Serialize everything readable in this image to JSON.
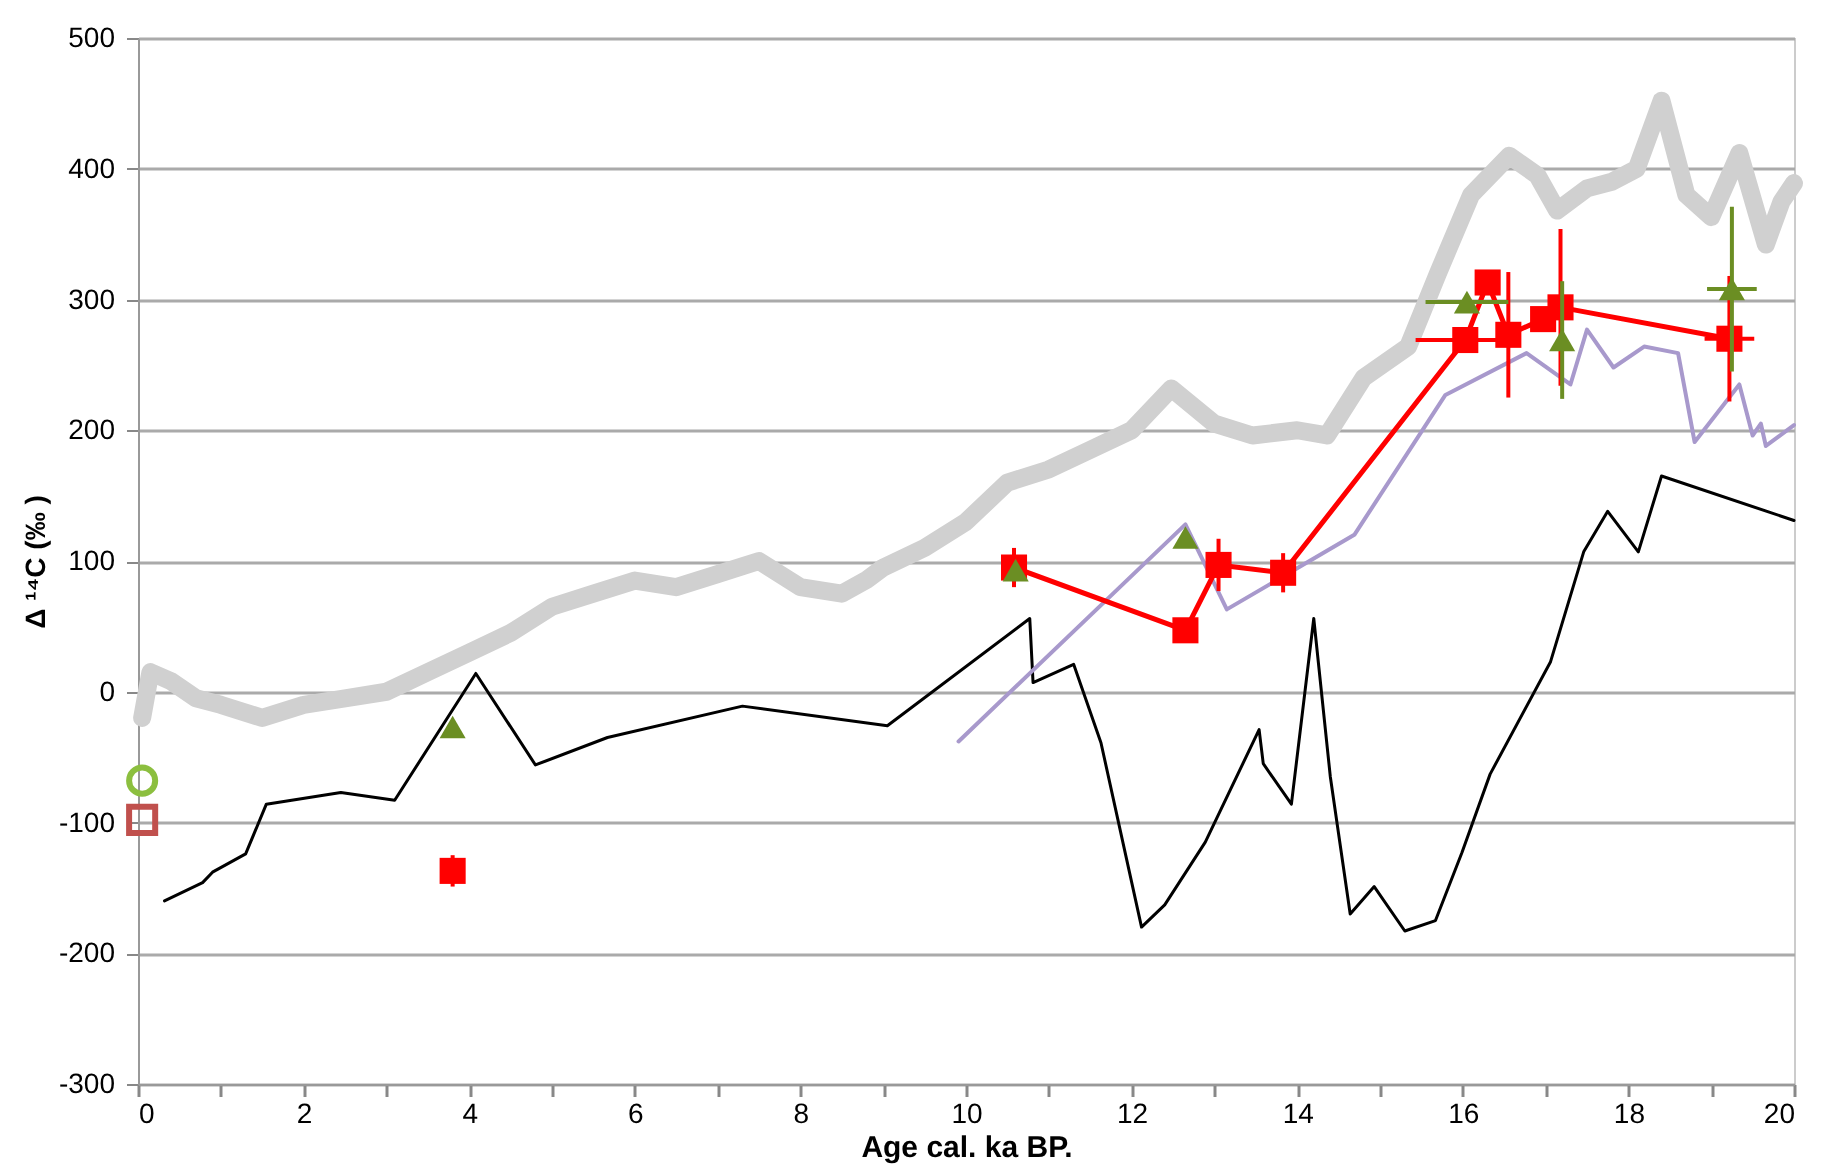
{
  "chart_data": {
    "type": "line",
    "xlabel": "Age cal. ka BP.",
    "ylabel": "Δ ¹⁴C (‰ )",
    "xlim": [
      0,
      20
    ],
    "ylim": [
      -300,
      500
    ],
    "xticks": [
      0,
      {
        "value": 1,
        "label": null
      },
      2,
      {
        "value": 3,
        "label": null
      },
      4,
      {
        "value": 5,
        "label": null
      },
      6,
      {
        "value": 7,
        "label": null
      },
      8,
      {
        "value": 9,
        "label": null
      },
      10,
      {
        "value": 11,
        "label": null
      },
      12,
      {
        "value": 13,
        "label": null
      },
      14,
      {
        "value": 15,
        "label": null
      },
      16,
      {
        "value": 17,
        "label": null
      },
      18,
      {
        "value": 19,
        "label": null
      },
      20
    ],
    "yticks": [
      -300,
      -200,
      -100,
      0,
      100,
      200,
      300,
      400,
      500
    ],
    "grid": "y",
    "series": [
      {
        "color": "#d0d0d0",
        "marker": "none",
        "line_style": "solid",
        "x": [
          0.05,
          0.15,
          0.4,
          0.7,
          1.0,
          1.5,
          2.0,
          2.5,
          3.0,
          3.5,
          4.0,
          4.5,
          5.0,
          5.5,
          6.0,
          6.5,
          7.0,
          7.5,
          8.0,
          8.5,
          8.81,
          9.0,
          9.5,
          10.0,
          10.5,
          11.0,
          11.5,
          12.0,
          12.48,
          13.0,
          13.46,
          14.0,
          14.36,
          14.8,
          15.34,
          15.7,
          16.1,
          16.56,
          16.9,
          17.14,
          17.5,
          17.8,
          18.1,
          18.4,
          18.7,
          19.0,
          19.34,
          19.66,
          19.85,
          20.0
        ],
        "values": [
          -20,
          15,
          8,
          -5,
          -10,
          -20,
          -10,
          -5,
          0,
          15,
          30,
          45,
          65,
          75,
          85,
          80,
          90,
          100,
          80,
          75,
          86,
          95,
          110,
          130,
          160,
          170,
          185,
          200,
          232,
          205,
          196,
          200,
          196,
          240,
          264,
          320,
          380,
          410,
          395,
          368,
          385,
          390,
          400,
          452,
          380,
          363,
          412,
          342,
          375,
          389
        ]
      },
      {
        "color": "#000000",
        "marker": "none",
        "line_style": "solid",
        "x": [
          0.32,
          0.78,
          0.9,
          1.3,
          1.55,
          2.45,
          3.1,
          4.08,
          4.8,
          5.67,
          7.3,
          9.05,
          10.77,
          10.81,
          11.3,
          11.63,
          12.12,
          12.4,
          12.89,
          13.54,
          13.59,
          13.93,
          14.2,
          14.4,
          14.64,
          14.93,
          15.3,
          15.67,
          15.99,
          16.33,
          17.06,
          17.46,
          17.75,
          18.12,
          18.4,
          20.0
        ],
        "values": [
          -160,
          -146,
          -138,
          -124,
          -86,
          -77,
          -83,
          14,
          -56,
          -35,
          -11,
          -26,
          56,
          7,
          21,
          -39,
          -180,
          -163,
          -115,
          -29,
          -55,
          -86,
          56,
          -65,
          -170,
          -149,
          -183,
          -175,
          -123,
          -63,
          23,
          107,
          138,
          107,
          165,
          131
        ]
      },
      {
        "color": "#a899cc",
        "marker": "none",
        "line_style": "solid",
        "x": [
          9.91,
          12.65,
          13.15,
          14.69,
          15.79,
          16.77,
          17.3,
          17.5,
          17.82,
          18.19,
          18.6,
          18.8,
          19.34,
          19.5,
          19.6,
          19.66,
          20.0
        ],
        "values": [
          -38,
          128,
          63,
          120,
          227,
          259,
          235,
          277,
          248,
          264,
          259,
          191,
          235,
          196,
          205,
          188,
          204
        ]
      },
      {
        "color": "#ff0000",
        "marker": "square",
        "line_style": "solid",
        "x": [
          10.58,
          12.65,
          13.05,
          13.83,
          16.03,
          16.3,
          16.55,
          16.97,
          17.18,
          19.22
        ],
        "values": [
          95,
          47,
          97,
          91,
          269,
          313,
          273,
          285,
          294,
          270
        ],
        "errors": [
          15,
          null,
          20,
          15,
          null,
          null,
          48,
          null,
          60,
          48
        ],
        "xerrors": [
          null,
          null,
          null,
          null,
          0.6,
          null,
          null,
          null,
          null,
          0.3
        ]
      },
      {
        "type": "scatter",
        "color": "#ff0000",
        "marker": "square",
        "x": [
          3.8
        ],
        "values": [
          -137
        ],
        "errors": [
          12
        ]
      },
      {
        "type": "scatter",
        "color": "#6b8e23",
        "marker": "triangle",
        "x": [
          3.8,
          10.6,
          12.65,
          16.05,
          17.2,
          19.25
        ],
        "values": [
          -27,
          93,
          118,
          298,
          269,
          308
        ],
        "errors": [
          null,
          null,
          null,
          null,
          45,
          63
        ],
        "xerrors": [
          null,
          null,
          null,
          0.5,
          null,
          0.3
        ]
      },
      {
        "type": "scatter",
        "color": "#8cbf3f",
        "marker": "circle",
        "x": [
          0.05
        ],
        "values": [
          -68
        ]
      },
      {
        "type": "scatter",
        "color": "#c0504d",
        "marker": "square",
        "x": [
          0.05
        ],
        "values": [
          -98
        ]
      }
    ]
  }
}
